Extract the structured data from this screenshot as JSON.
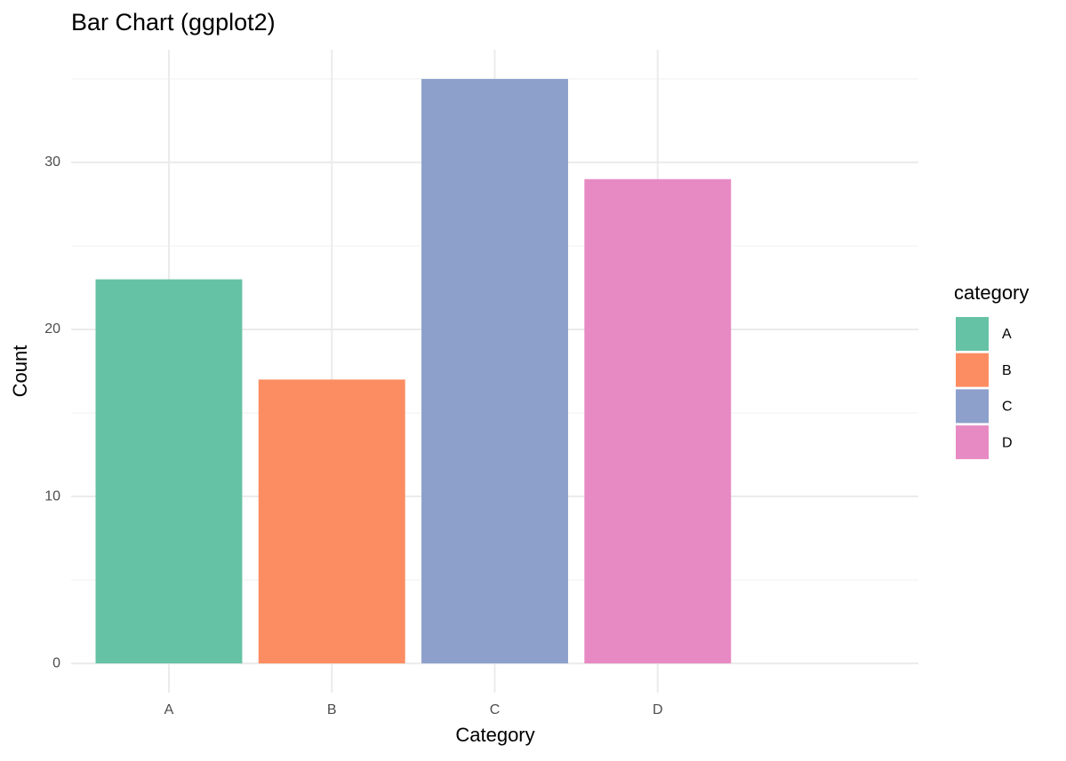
{
  "chart_data": {
    "type": "bar",
    "title": "Bar Chart (ggplot2)",
    "x_label": "Category",
    "y_label": "Count",
    "categories": [
      "A",
      "B",
      "C",
      "D"
    ],
    "values": [
      23,
      17,
      35,
      29
    ],
    "colors": [
      "#66c2a5",
      "#fc8d62",
      "#8da0cb",
      "#e78ac3"
    ],
    "ylim": [
      -1.75,
      36.75
    ],
    "yticks": [
      0,
      10,
      20,
      30
    ],
    "minor_yticks": [
      5,
      15,
      25,
      35
    ],
    "grid": true,
    "legend_title": "category",
    "legend_position": "right"
  }
}
